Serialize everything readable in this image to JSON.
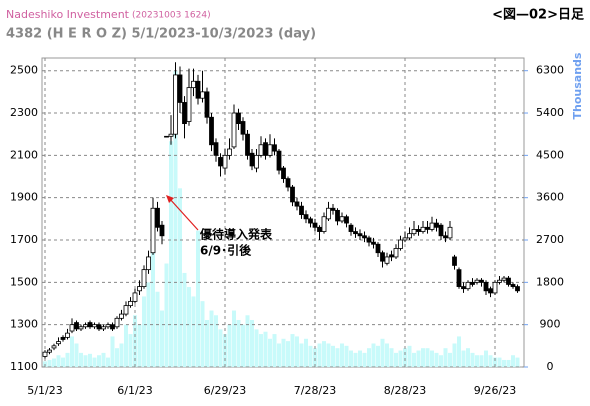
{
  "chart_data": {
    "type": "candlestick",
    "source": "Nadeshiko Investment",
    "timestamp": "(20231003 1624)",
    "title": "4382 (H E R O Z) 5/1/2023-10/3/2023 (day)",
    "figure_label": "<図—02>日足",
    "y2_label": "Thousands",
    "annotation": {
      "lines": [
        "優待導入発表",
        "6/9･引後"
      ],
      "color": "#e02020"
    },
    "x": [
      "5/1/23",
      "5/2/23",
      "5/8/23",
      "5/9/23",
      "5/10/23",
      "5/11/23",
      "5/12/23",
      "5/15/23",
      "5/16/23",
      "5/17/23",
      "5/18/23",
      "5/19/23",
      "5/22/23",
      "5/23/23",
      "5/24/23",
      "5/25/23",
      "5/26/23",
      "5/29/23",
      "5/30/23",
      "5/31/23",
      "6/1/23",
      "6/2/23",
      "6/5/23",
      "6/6/23",
      "6/7/23",
      "6/8/23",
      "6/9/23",
      "6/12/23",
      "6/13/23",
      "6/14/23",
      "6/15/23",
      "6/16/23",
      "6/19/23",
      "6/20/23",
      "6/21/23",
      "6/22/23",
      "6/23/23",
      "6/26/23",
      "6/27/23",
      "6/28/23",
      "6/29/23",
      "6/30/23",
      "7/3/23",
      "7/4/23",
      "7/5/23",
      "7/6/23",
      "7/7/23",
      "7/10/23",
      "7/11/23",
      "7/12/23",
      "7/13/23",
      "7/14/23",
      "7/18/23",
      "7/19/23",
      "7/20/23",
      "7/21/23",
      "7/24/23",
      "7/25/23",
      "7/26/23",
      "7/27/23",
      "7/28/23",
      "7/31/23",
      "8/1/23",
      "8/2/23",
      "8/3/23",
      "8/4/23",
      "8/7/23",
      "8/8/23",
      "8/9/23",
      "8/10/23",
      "8/14/23",
      "8/15/23",
      "8/16/23",
      "8/17/23",
      "8/18/23",
      "8/21/23",
      "8/22/23",
      "8/23/23",
      "8/24/23",
      "8/25/23",
      "8/28/23",
      "8/29/23",
      "8/30/23",
      "8/31/23",
      "9/1/23",
      "9/4/23",
      "9/5/23",
      "9/6/23",
      "9/7/23",
      "9/8/23",
      "9/11/23",
      "9/12/23",
      "9/13/23",
      "9/14/23",
      "9/15/23",
      "9/19/23",
      "9/20/23",
      "9/21/23",
      "9/22/23",
      "9/25/23",
      "9/26/23",
      "9/27/23",
      "9/28/23",
      "9/29/23",
      "10/2/23",
      "10/3/23"
    ],
    "open": [
      1150,
      1170,
      1190,
      1210,
      1240,
      1240,
      1270,
      1310,
      1280,
      1290,
      1310,
      1290,
      1300,
      1280,
      1290,
      1300,
      1290,
      1330,
      1350,
      1390,
      1410,
      1460,
      1480,
      1560,
      1640,
      1850,
      1770,
      2190,
      2190,
      2200,
      2480,
      2350,
      2260,
      2420,
      2450,
      2370,
      2400,
      2280,
      2160,
      2090,
      2040,
      2100,
      2140,
      2300,
      2260,
      2200,
      2110,
      2040,
      2100,
      2160,
      2100,
      2150,
      2120,
      2040,
      1990,
      1950,
      1880,
      1860,
      1820,
      1800,
      1780,
      1760,
      1740,
      1800,
      1850,
      1840,
      1790,
      1810,
      1770,
      1740,
      1730,
      1720,
      1710,
      1690,
      1680,
      1640,
      1590,
      1630,
      1620,
      1660,
      1700,
      1710,
      1730,
      1750,
      1740,
      1760,
      1750,
      1780,
      1770,
      1720,
      1710,
      1620,
      1560,
      1480,
      1470,
      1500,
      1500,
      1510,
      1500,
      1470,
      1450,
      1500,
      1510,
      1520,
      1490,
      1480
    ],
    "high": [
      1180,
      1190,
      1210,
      1240,
      1250,
      1280,
      1330,
      1320,
      1300,
      1310,
      1320,
      1310,
      1310,
      1300,
      1310,
      1310,
      1340,
      1370,
      1410,
      1430,
      1470,
      1510,
      1580,
      1650,
      1900,
      1880,
      1790,
      2190,
      2290,
      2540,
      2520,
      2380,
      2510,
      2510,
      2480,
      2500,
      2420,
      2300,
      2180,
      2110,
      2130,
      2180,
      2340,
      2320,
      2280,
      2220,
      2130,
      2130,
      2190,
      2180,
      2200,
      2180,
      2130,
      2050,
      2000,
      1960,
      1900,
      1880,
      1840,
      1810,
      1800,
      1770,
      1830,
      1880,
      1870,
      1850,
      1830,
      1820,
      1780,
      1760,
      1750,
      1740,
      1720,
      1710,
      1690,
      1650,
      1640,
      1650,
      1680,
      1720,
      1740,
      1760,
      1790,
      1770,
      1790,
      1790,
      1810,
      1800,
      1780,
      1740,
      1790,
      1630,
      1570,
      1500,
      1510,
      1520,
      1520,
      1520,
      1510,
      1480,
      1510,
      1530,
      1530,
      1530,
      1500,
      1490
    ],
    "low": [
      1140,
      1160,
      1180,
      1200,
      1220,
      1230,
      1260,
      1270,
      1270,
      1280,
      1280,
      1280,
      1270,
      1270,
      1280,
      1270,
      1280,
      1320,
      1340,
      1380,
      1400,
      1440,
      1470,
      1540,
      1630,
      1740,
      1680,
      2190,
      2150,
      2180,
      2300,
      2180,
      2240,
      2380,
      2340,
      2350,
      2250,
      2120,
      2070,
      2000,
      2010,
      2080,
      2130,
      2220,
      2170,
      2080,
      2030,
      2020,
      2090,
      2080,
      2090,
      2100,
      2010,
      1970,
      1930,
      1860,
      1840,
      1800,
      1780,
      1760,
      1740,
      1700,
      1730,
      1790,
      1820,
      1770,
      1780,
      1760,
      1720,
      1710,
      1700,
      1690,
      1670,
      1660,
      1620,
      1570,
      1580,
      1600,
      1610,
      1650,
      1690,
      1700,
      1720,
      1720,
      1730,
      1730,
      1740,
      1740,
      1700,
      1690,
      1700,
      1560,
      1470,
      1450,
      1460,
      1480,
      1490,
      1480,
      1440,
      1430,
      1440,
      1490,
      1500,
      1480,
      1470,
      1450
    ],
    "close": [
      1170,
      1180,
      1200,
      1220,
      1230,
      1260,
      1300,
      1280,
      1290,
      1300,
      1290,
      1300,
      1280,
      1290,
      1300,
      1280,
      1330,
      1350,
      1390,
      1410,
      1450,
      1480,
      1560,
      1620,
      1850,
      1760,
      1720,
      2190,
      2200,
      2480,
      2350,
      2250,
      2420,
      2450,
      2370,
      2400,
      2280,
      2150,
      2100,
      2050,
      2100,
      2130,
      2300,
      2250,
      2200,
      2100,
      2050,
      2100,
      2150,
      2100,
      2150,
      2120,
      2030,
      1990,
      1950,
      1880,
      1860,
      1820,
      1800,
      1780,
      1760,
      1740,
      1810,
      1850,
      1840,
      1790,
      1810,
      1780,
      1740,
      1730,
      1720,
      1710,
      1690,
      1680,
      1640,
      1600,
      1620,
      1620,
      1660,
      1700,
      1710,
      1730,
      1750,
      1740,
      1760,
      1750,
      1780,
      1760,
      1720,
      1710,
      1760,
      1580,
      1480,
      1470,
      1500,
      1490,
      1510,
      1500,
      1460,
      1450,
      1500,
      1510,
      1520,
      1490,
      1480,
      1460
    ],
    "volume": [
      120,
      150,
      180,
      250,
      200,
      300,
      650,
      500,
      300,
      250,
      280,
      200,
      250,
      300,
      200,
      650,
      400,
      500,
      900,
      700,
      1100,
      900,
      1500,
      1800,
      2600,
      1600,
      1200,
      2200,
      4800,
      6300,
      3800,
      2000,
      1700,
      1500,
      2900,
      1400,
      1000,
      1200,
      1100,
      800,
      700,
      900,
      1200,
      1000,
      900,
      1100,
      1000,
      800,
      700,
      750,
      600,
      700,
      500,
      600,
      550,
      700,
      650,
      500,
      600,
      450,
      400,
      500,
      550,
      500,
      450,
      400,
      500,
      450,
      350,
      300,
      350,
      300,
      400,
      500,
      450,
      600,
      500,
      400,
      300,
      350,
      400,
      450,
      300,
      350,
      400,
      400,
      350,
      300,
      250,
      400,
      300,
      500,
      650,
      350,
      400,
      300,
      250,
      250,
      350,
      250,
      200,
      200,
      150,
      150,
      250,
      200
    ],
    "up_color": "#ffffff",
    "down_color": "#000000",
    "volume_color": "#c8fafa",
    "ylim": [
      1100,
      2560
    ],
    "yticks": [
      1100,
      1300,
      1500,
      1700,
      1900,
      2100,
      2300,
      2500
    ],
    "y2lim": [
      0,
      6570
    ],
    "y2ticks": [
      0,
      900,
      1800,
      2700,
      3600,
      4500,
      5400,
      6300
    ],
    "xticks": [
      "5/1/23",
      "6/1/23",
      "6/29/23",
      "7/28/23",
      "8/28/23",
      "9/26/23"
    ],
    "grid": true
  }
}
